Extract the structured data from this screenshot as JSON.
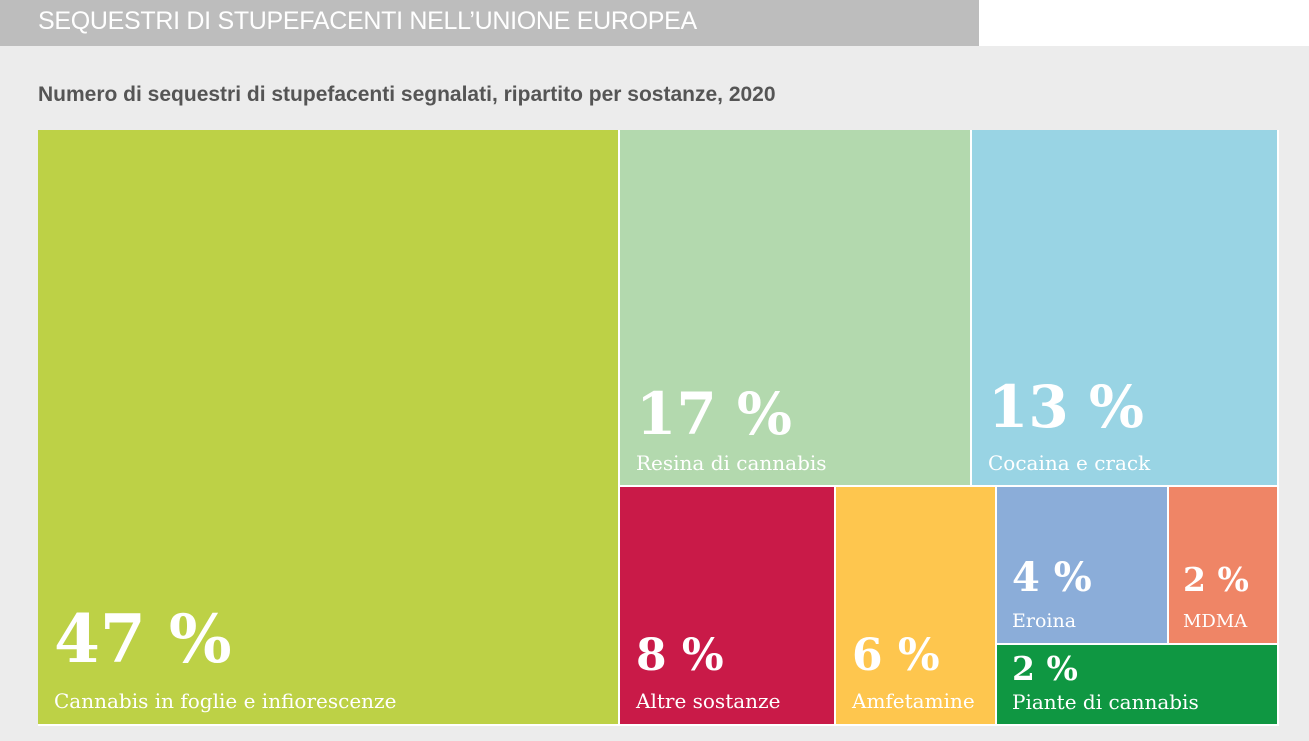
{
  "header": {
    "title": "SEQUESTRI DI STUPEFACENTI NELL’UNIONE EUROPEA"
  },
  "subtitle": "Numero di sequestri di stupefacenti segnalati, ripartito per sostanze, 2020",
  "chart_data": {
    "type": "treemap",
    "title": "Numero di sequestri di stupefacenti segnalati, ripartito per sostanze, 2020",
    "unit": "%",
    "categories": [
      "Cannabis in foglie e infiorescenze",
      "Resina di cannabis",
      "Cocaina e crack",
      "Altre sostanze",
      "Amfetamine",
      "Eroina",
      "MDMA",
      "Piante di cannabis"
    ],
    "values": [
      47,
      17,
      13,
      8,
      6,
      4,
      2,
      2
    ],
    "pct_labels": [
      "47 %",
      "17 %",
      "13 %",
      "8 %",
      "6 %",
      "4 %",
      "2 %",
      "2 %"
    ],
    "colors": [
      "#bdd146",
      "#b3d9ae",
      "#99d4e4",
      "#c91a48",
      "#fec64e",
      "#8badd9",
      "#ef8566",
      "#0f9742"
    ]
  }
}
